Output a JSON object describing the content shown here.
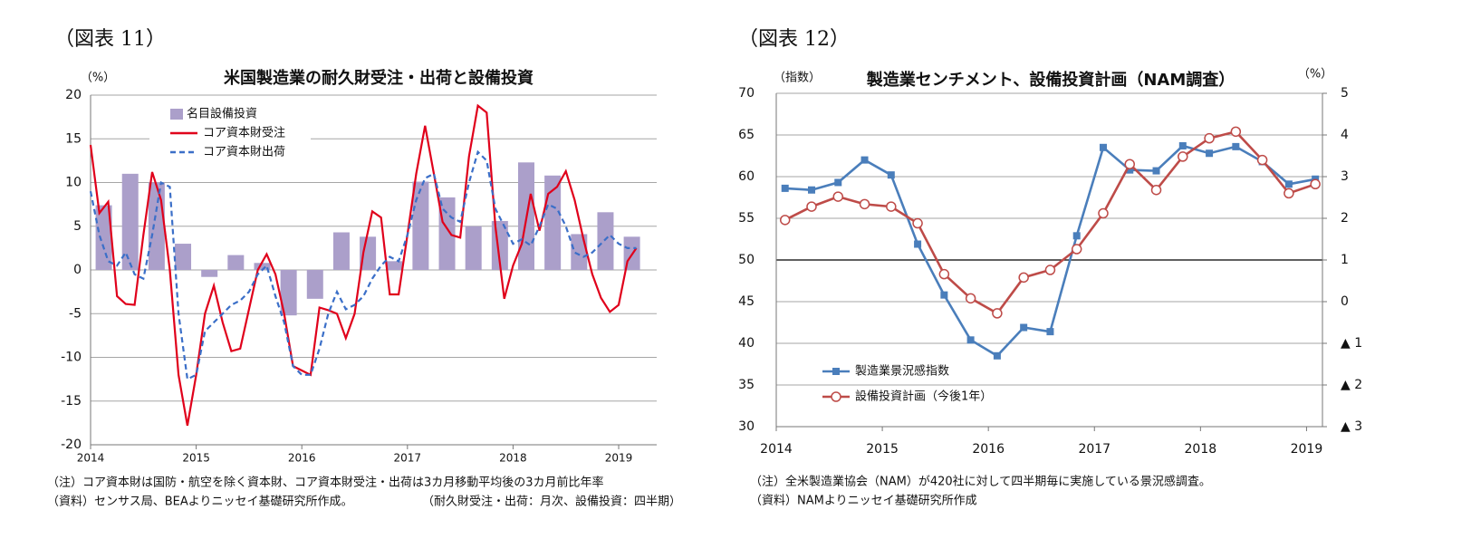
{
  "chart_data": [
    {
      "type": "combo",
      "figure_label": "（図表 11）",
      "title": "米国製造業の耐久財受注・出荷と設備投資",
      "y_label": "（%）",
      "xlim": [
        2014,
        2019.36
      ],
      "xticks": [
        2014,
        2015,
        2016,
        2017,
        2018,
        2019
      ],
      "ylim": [
        -20,
        20
      ],
      "yticks": [
        -20,
        -15,
        -10,
        -5,
        0,
        5,
        10,
        15,
        20
      ],
      "grid": true,
      "x": [
        2014,
        2014.083,
        2014.167,
        2014.25,
        2014.333,
        2014.417,
        2014.5,
        2014.583,
        2014.667,
        2014.75,
        2014.833,
        2014.917,
        2015,
        2015.083,
        2015.167,
        2015.25,
        2015.333,
        2015.417,
        2015.5,
        2015.583,
        2015.667,
        2015.75,
        2015.833,
        2015.917,
        2016,
        2016.083,
        2016.167,
        2016.25,
        2016.333,
        2016.417,
        2016.5,
        2016.583,
        2016.667,
        2016.75,
        2016.833,
        2016.917,
        2017,
        2017.083,
        2017.167,
        2017.25,
        2017.333,
        2017.417,
        2017.5,
        2017.583,
        2017.667,
        2017.75,
        2017.833,
        2017.917,
        2018,
        2018.083,
        2018.167,
        2018.25,
        2018.333,
        2018.417,
        2018.5,
        2018.583,
        2018.667,
        2018.75,
        2018.833,
        2018.917,
        2019,
        2019.083,
        2019.167
      ],
      "series": [
        {
          "name": "名目設備投資",
          "type": "bar",
          "color": "#ab9fca",
          "x": [
            2014.125,
            2014.375,
            2014.625,
            2014.875,
            2015.125,
            2015.375,
            2015.625,
            2015.875,
            2016.125,
            2016.375,
            2016.625,
            2016.875,
            2017.125,
            2017.375,
            2017.625,
            2017.875,
            2018.125,
            2018.375,
            2018.625,
            2018.875,
            2019.125
          ],
          "values": [
            7.4,
            11,
            10,
            3,
            -0.8,
            1.7,
            0.8,
            -5.2,
            -3.3,
            4.3,
            3.8,
            1.0,
            10.1,
            8.3,
            5.0,
            5.6,
            12.3,
            10.8,
            4.1,
            6.6,
            3.8
          ]
        },
        {
          "name": "コア資本財受注",
          "type": "line",
          "color": "#e0001b",
          "values": [
            14.3,
            6.5,
            7.8,
            -3,
            -3.9,
            -4,
            4,
            11.2,
            8,
            0,
            -12,
            -17.8,
            -12,
            -5,
            -1.8,
            -6,
            -9.3,
            -9,
            -4.5,
            0,
            1.8,
            -0.5,
            -5,
            -11,
            -11.5,
            -12,
            -4.3,
            -4.6,
            -5,
            -7.8,
            -5,
            2,
            6.7,
            6,
            -2.8,
            -2.8,
            4,
            11,
            16.5,
            11,
            5.5,
            4,
            3.7,
            13,
            18.8,
            18,
            5,
            -3.3,
            0.5,
            3,
            8.7,
            4.5,
            8.7,
            9.5,
            11.3,
            8,
            3.5,
            -0.5,
            -3.2,
            -4.8,
            -4,
            1,
            2.5
          ]
        },
        {
          "name": "コア資本財出荷",
          "type": "line",
          "color": "#3b6fc8",
          "dash": true,
          "values": [
            9,
            4,
            1,
            0.5,
            2,
            -0.5,
            -1,
            4,
            10,
            9.5,
            -5,
            -12.5,
            -12,
            -7,
            -6,
            -5,
            -4,
            -3.5,
            -2.5,
            -0.5,
            0.5,
            -3,
            -6,
            -11,
            -12,
            -12,
            -9,
            -5,
            -2.5,
            -4.5,
            -4,
            -3,
            -1,
            0.5,
            1.5,
            1,
            4,
            8,
            10.5,
            11,
            7,
            6,
            5.5,
            10,
            13.5,
            12.5,
            7,
            5,
            3,
            3.5,
            2.8,
            5,
            7.5,
            7,
            5,
            2,
            1.5,
            2,
            3,
            4,
            3,
            2.5,
            2.5
          ]
        }
      ],
      "notes": [
        "（注）コア資本財は国防・航空を除く資本財、コア資本財受注・出荷は3カ月移動平均後の3カ月前比年率",
        "（資料）センサス局、BEAよりニッセイ基礎研究所作成。",
        "（耐久財受注・出荷：月次、設備投資：四半期）"
      ]
    },
    {
      "type": "line",
      "figure_label": "（図表 12）",
      "title": "製造業センチメント、設備投資計画（NAM調査）",
      "y_label": "（指数）",
      "y2_label": "（%）",
      "xlim": [
        2014,
        2019.15
      ],
      "xticks": [
        2014,
        2015,
        2016,
        2017,
        2018,
        2019
      ],
      "ylim": [
        30,
        70
      ],
      "yticks": [
        30,
        35,
        40,
        45,
        50,
        55,
        60,
        65,
        70
      ],
      "y2lim": [
        -3,
        5
      ],
      "y2ticks": [
        {
          "value": -3,
          "label": "▲ 3"
        },
        {
          "value": -2,
          "label": "▲ 2"
        },
        {
          "value": -1,
          "label": "▲ 1"
        },
        0,
        1,
        2,
        3,
        4,
        5
      ],
      "grid": true,
      "hline": 50,
      "x": [
        2014.083,
        2014.333,
        2014.583,
        2014.833,
        2015.083,
        2015.333,
        2015.583,
        2015.833,
        2016.083,
        2016.333,
        2016.583,
        2016.833,
        2017.083,
        2017.333,
        2017.583,
        2017.833,
        2018.083,
        2018.333,
        2018.583,
        2018.833,
        2019.083
      ],
      "series": [
        {
          "name": "製造業景況感指数",
          "type": "line",
          "color": "#4a7ebb",
          "marker": "square",
          "values": [
            58.6,
            58.4,
            59.3,
            62,
            60.2,
            51.9,
            45.8,
            40.4,
            38.5,
            41.9,
            41.4,
            52.9,
            63.5,
            60.8,
            60.7,
            63.7,
            62.8,
            63.6,
            61.8,
            59.1,
            59.7
          ]
        },
        {
          "name": "設備投資計画（今後1年）",
          "type": "line",
          "color": "#be4b48",
          "marker": "circle",
          "axis": "y2",
          "values": [
            1.96,
            2.28,
            2.52,
            2.34,
            2.28,
            1.88,
            0.66,
            0.08,
            -0.28,
            0.58,
            0.76,
            1.26,
            2.12,
            3.3,
            2.68,
            3.48,
            3.92,
            4.08,
            3.4,
            2.6,
            2.82
          ]
        }
      ],
      "notes": [
        "（注）全米製造業協会（NAM）が420社に対して四半期毎に実施している景況感調査。",
        "（資料）NAMよりニッセイ基礎研究所作成"
      ]
    }
  ]
}
